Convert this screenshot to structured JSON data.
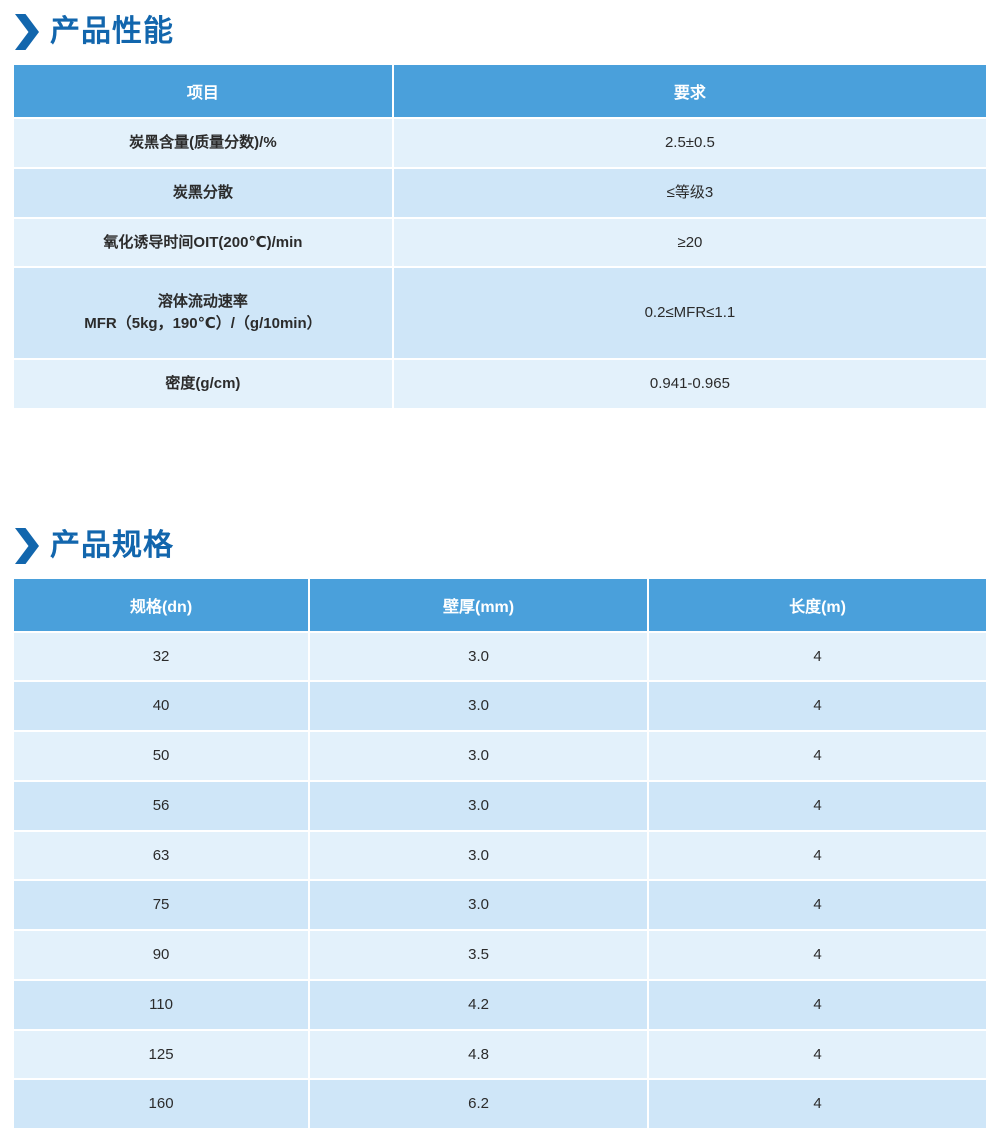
{
  "colors": {
    "accent": "#1266ad",
    "table_header_bg": "#4aa0db",
    "row_light": "#e3f1fb",
    "row_dark": "#cfe6f8"
  },
  "performance": {
    "title": "产品性能",
    "columns": [
      "项目",
      "要求"
    ],
    "rows": [
      [
        "炭黑含量(质量分数)/%",
        "2.5±0.5"
      ],
      [
        "炭黑分散",
        "≤等级3"
      ],
      [
        "氧化诱导时间OIT(200℃)/min",
        "≥20"
      ],
      [
        "溶体流动速率\nMFR（5kg，190℃）/（g/10min）",
        "0.2≤MFR≤1.1"
      ],
      [
        "密度(g/cm)",
        "0.941-0.965"
      ]
    ]
  },
  "specifications": {
    "title": "产品规格",
    "columns": [
      "规格(dn)",
      "壁厚(mm)",
      "长度(m)"
    ],
    "rows": [
      [
        "32",
        "3.0",
        "4"
      ],
      [
        "40",
        "3.0",
        "4"
      ],
      [
        "50",
        "3.0",
        "4"
      ],
      [
        "56",
        "3.0",
        "4"
      ],
      [
        "63",
        "3.0",
        "4"
      ],
      [
        "75",
        "3.0",
        "4"
      ],
      [
        "90",
        "3.5",
        "4"
      ],
      [
        "110",
        "4.2",
        "4"
      ],
      [
        "125",
        "4.8",
        "4"
      ],
      [
        "160",
        "6.2",
        "4"
      ]
    ]
  }
}
